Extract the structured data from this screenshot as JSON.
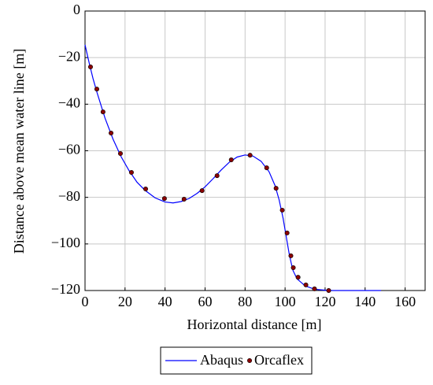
{
  "chart_data": {
    "type": "line",
    "xlabel": "Horizontal distance [m]",
    "ylabel": "Distance above mean water line [m]",
    "xlim": [
      0,
      170
    ],
    "ylim": [
      -120,
      0
    ],
    "xticks": [
      0,
      20,
      40,
      60,
      80,
      100,
      120,
      140,
      160
    ],
    "yticks": [
      {
        "value": -120,
        "label": "−120"
      },
      {
        "value": -100,
        "label": "−100"
      },
      {
        "value": -80,
        "label": "−80"
      },
      {
        "value": -60,
        "label": "−60"
      },
      {
        "value": -40,
        "label": "−40"
      },
      {
        "value": -20,
        "label": "−20"
      },
      0
    ],
    "grid": true,
    "legend": "bottom",
    "series": [
      {
        "name": "Abaqus",
        "color": "#0000ff",
        "style": "line",
        "x": [
          0,
          2,
          4,
          6,
          8,
          10,
          14,
          18,
          22,
          26,
          30,
          35,
          40,
          44,
          48,
          52,
          56,
          60,
          64,
          68,
          72,
          76,
          80,
          84,
          88,
          92,
          95,
          97,
          99,
          100,
          101,
          102,
          103,
          104,
          106,
          110,
          115,
          122,
          148
        ],
        "values": [
          -14.5,
          -22,
          -29,
          -35,
          -40.5,
          -46,
          -55,
          -62.5,
          -68.5,
          -73.5,
          -77,
          -80.2,
          -82,
          -82.4,
          -81.8,
          -80.5,
          -78.3,
          -75.5,
          -72,
          -68.3,
          -65,
          -62.7,
          -61.8,
          -62.3,
          -64.5,
          -69,
          -75,
          -81,
          -89,
          -94,
          -99,
          -104,
          -108,
          -111.5,
          -115,
          -118,
          -119.5,
          -120,
          -120
        ]
      },
      {
        "name": "Orcaflex",
        "color": "#8b0000",
        "style": "markers",
        "x": [
          2.75,
          5.9,
          9.0,
          13.0,
          17.7,
          23.2,
          30.3,
          39.7,
          49.5,
          58.5,
          66.0,
          73.1,
          82.5,
          90.8,
          95.5,
          98.6,
          101.0,
          102.9,
          104.1,
          106.5,
          110.4,
          114.7,
          121.8
        ],
        "values": [
          -24.0,
          -33.5,
          -43.3,
          -52.4,
          -61.2,
          -69.3,
          -76.4,
          -80.5,
          -80.8,
          -77.1,
          -70.7,
          -63.9,
          -61.9,
          -67.3,
          -76.1,
          -85.5,
          -95.3,
          -105.1,
          -110.2,
          -114.3,
          -117.6,
          -119.3,
          -120
        ]
      }
    ]
  }
}
